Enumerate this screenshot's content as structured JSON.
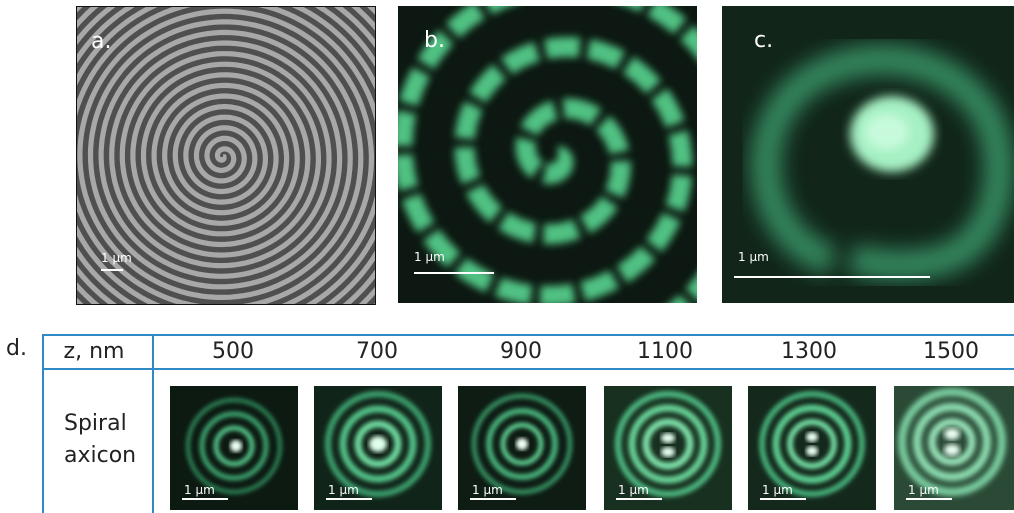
{
  "panels": {
    "a": {
      "label": "a.",
      "scale": "1 μm"
    },
    "b": {
      "label": "b.",
      "scale": "1 μm"
    },
    "c": {
      "label": "c.",
      "scale": "1 μm"
    }
  },
  "table": {
    "label": "d.",
    "header": "z, nm",
    "z_values": [
      "500",
      "700",
      "900",
      "1100",
      "1300",
      "1500"
    ],
    "row_label_line1": "Spiral",
    "row_label_line2": "axicon",
    "scale": "1 μm"
  }
}
